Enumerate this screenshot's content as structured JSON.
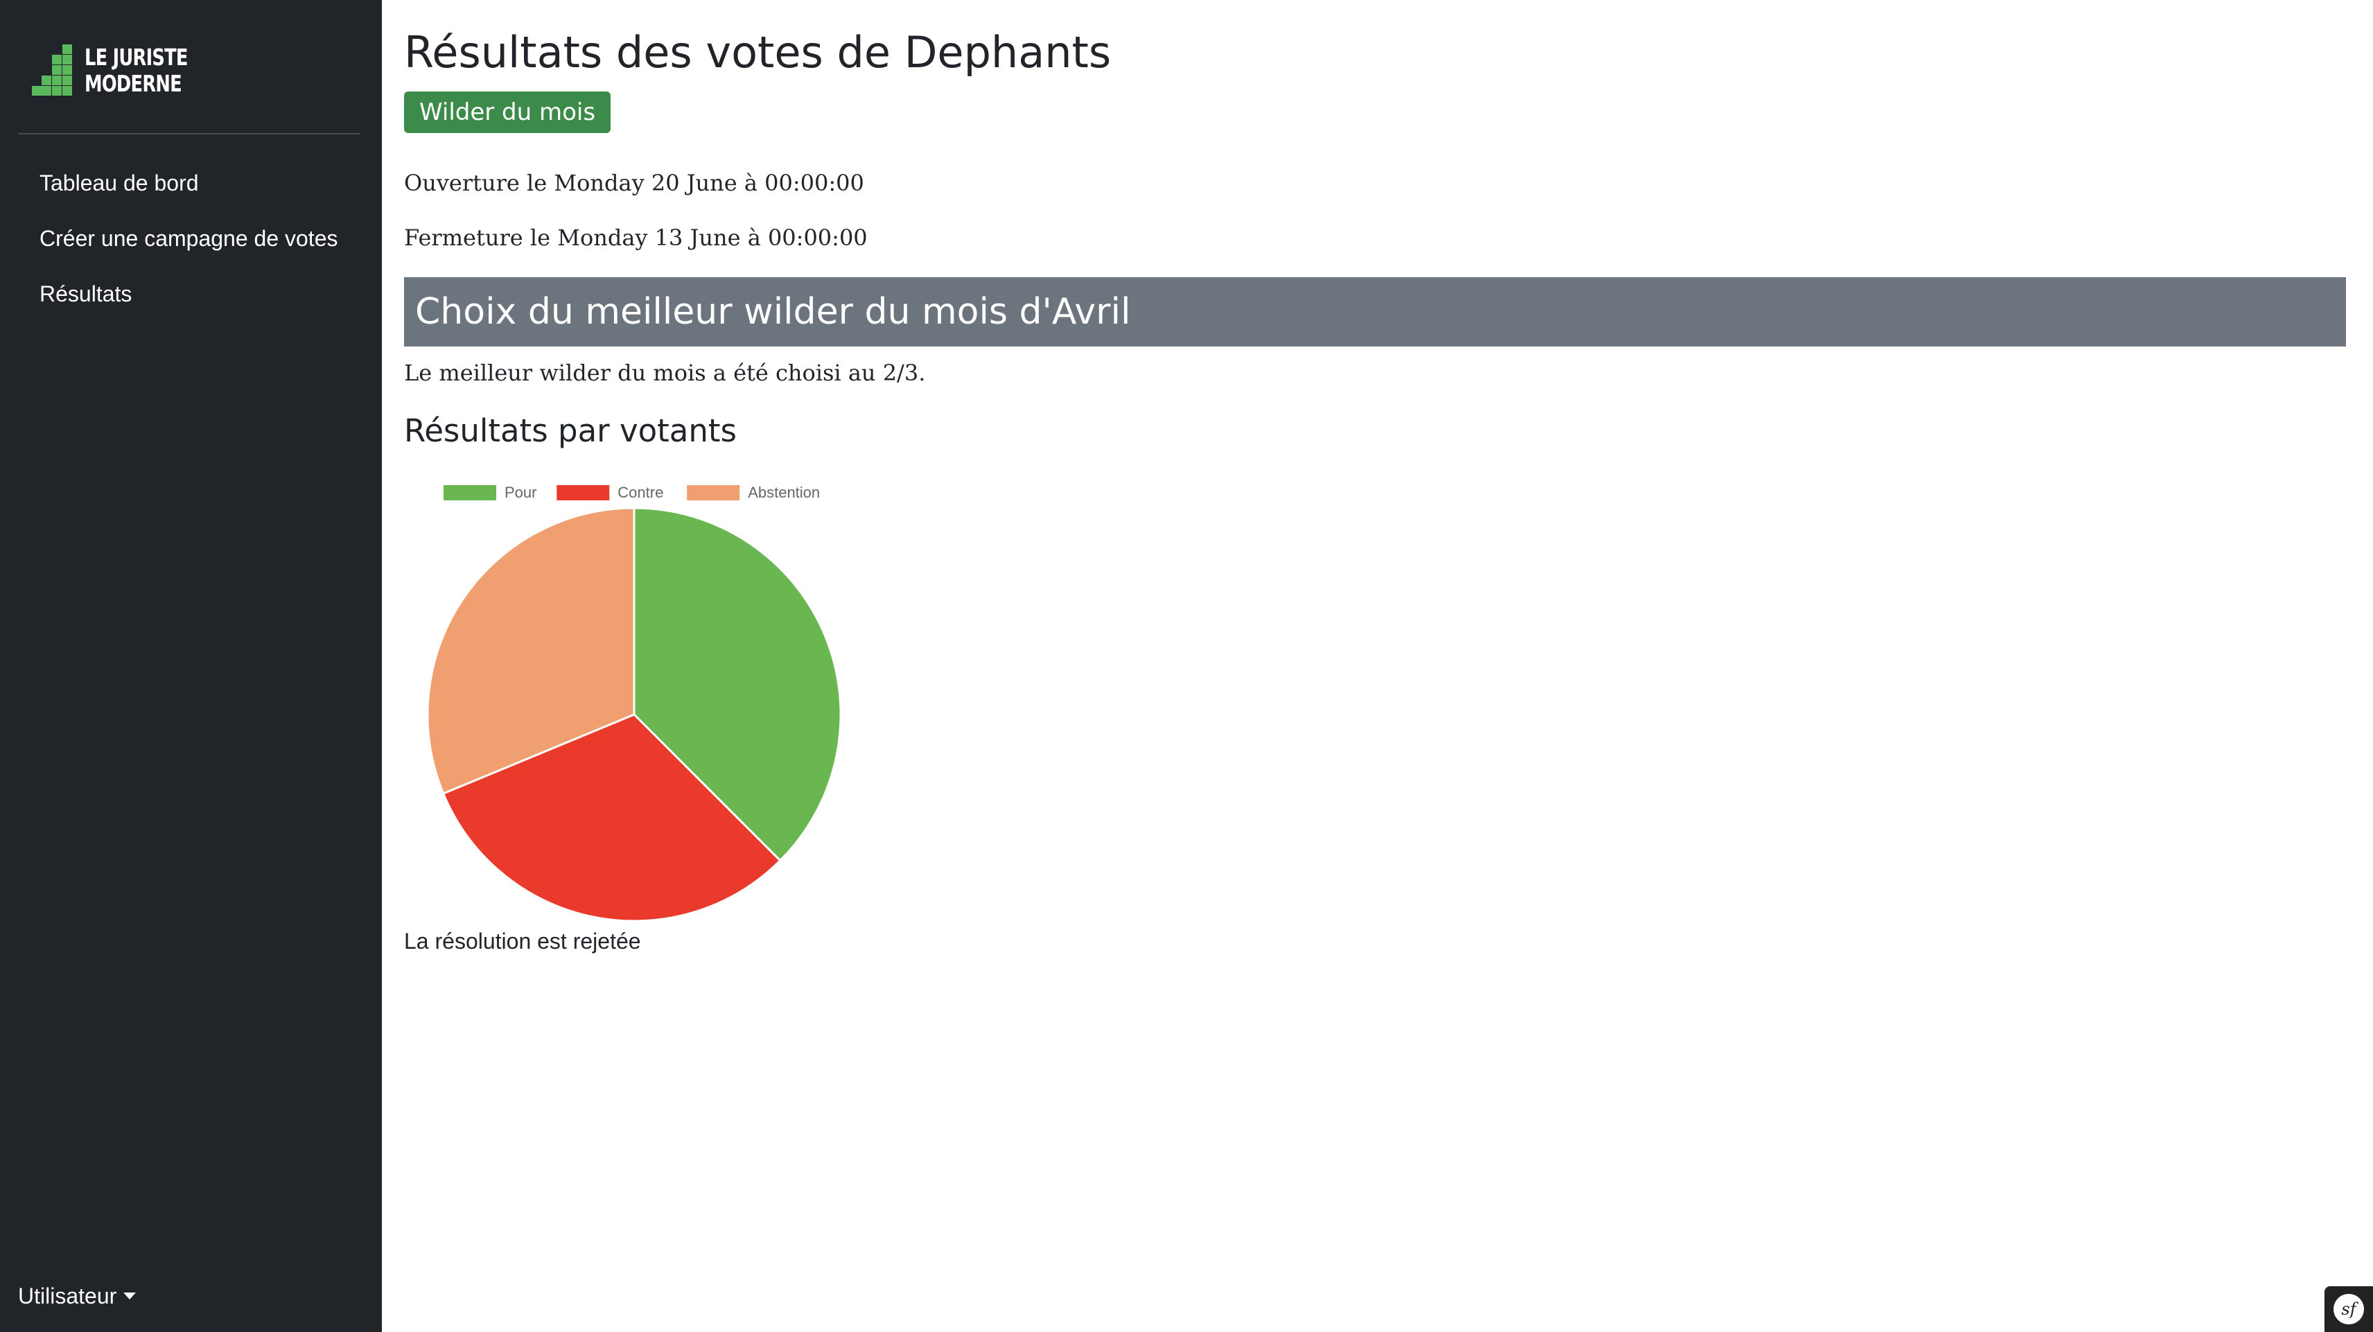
{
  "sidebar": {
    "logo": {
      "line1": "LE JURISTE",
      "line2": "MODERNE"
    },
    "items": [
      {
        "label": "Tableau de bord"
      },
      {
        "label": "Créer une campagne de votes"
      },
      {
        "label": "Résultats"
      }
    ],
    "user_menu": {
      "label": "Utilisateur"
    }
  },
  "main": {
    "title": "Résultats des votes de Dephants",
    "campaign_badge": "Wilder du mois",
    "opening": "Ouverture le Monday 20 June à 00:00:00",
    "closing": "Fermeture le Monday 13 June à 00:00:00",
    "question": {
      "title": "Choix du meilleur wilder du mois d'Avril",
      "majority": "Le meilleur wilder du mois a été choisi au 2/3.",
      "section_title": "Résultats par votants",
      "result": "La résolution est rejetée"
    }
  },
  "chart_data": {
    "type": "pie",
    "categories": [
      "Pour",
      "Contre",
      "Abstention"
    ],
    "values": [
      37.5,
      31.25,
      31.25
    ],
    "colors": [
      "#6ab651",
      "#ea3a2c",
      "#f0a070"
    ],
    "legend": "top",
    "title": ""
  },
  "colors": {
    "sidebar_bg": "#212529",
    "badge_bg": "#3d8b4a",
    "question_header_bg": "#6c757d",
    "logo_green": "#5cb85c"
  },
  "icons": {
    "user_menu_caret": "caret-down-icon",
    "symfony_toolbar": "symfony-icon",
    "symfony_glyph": "sf"
  }
}
